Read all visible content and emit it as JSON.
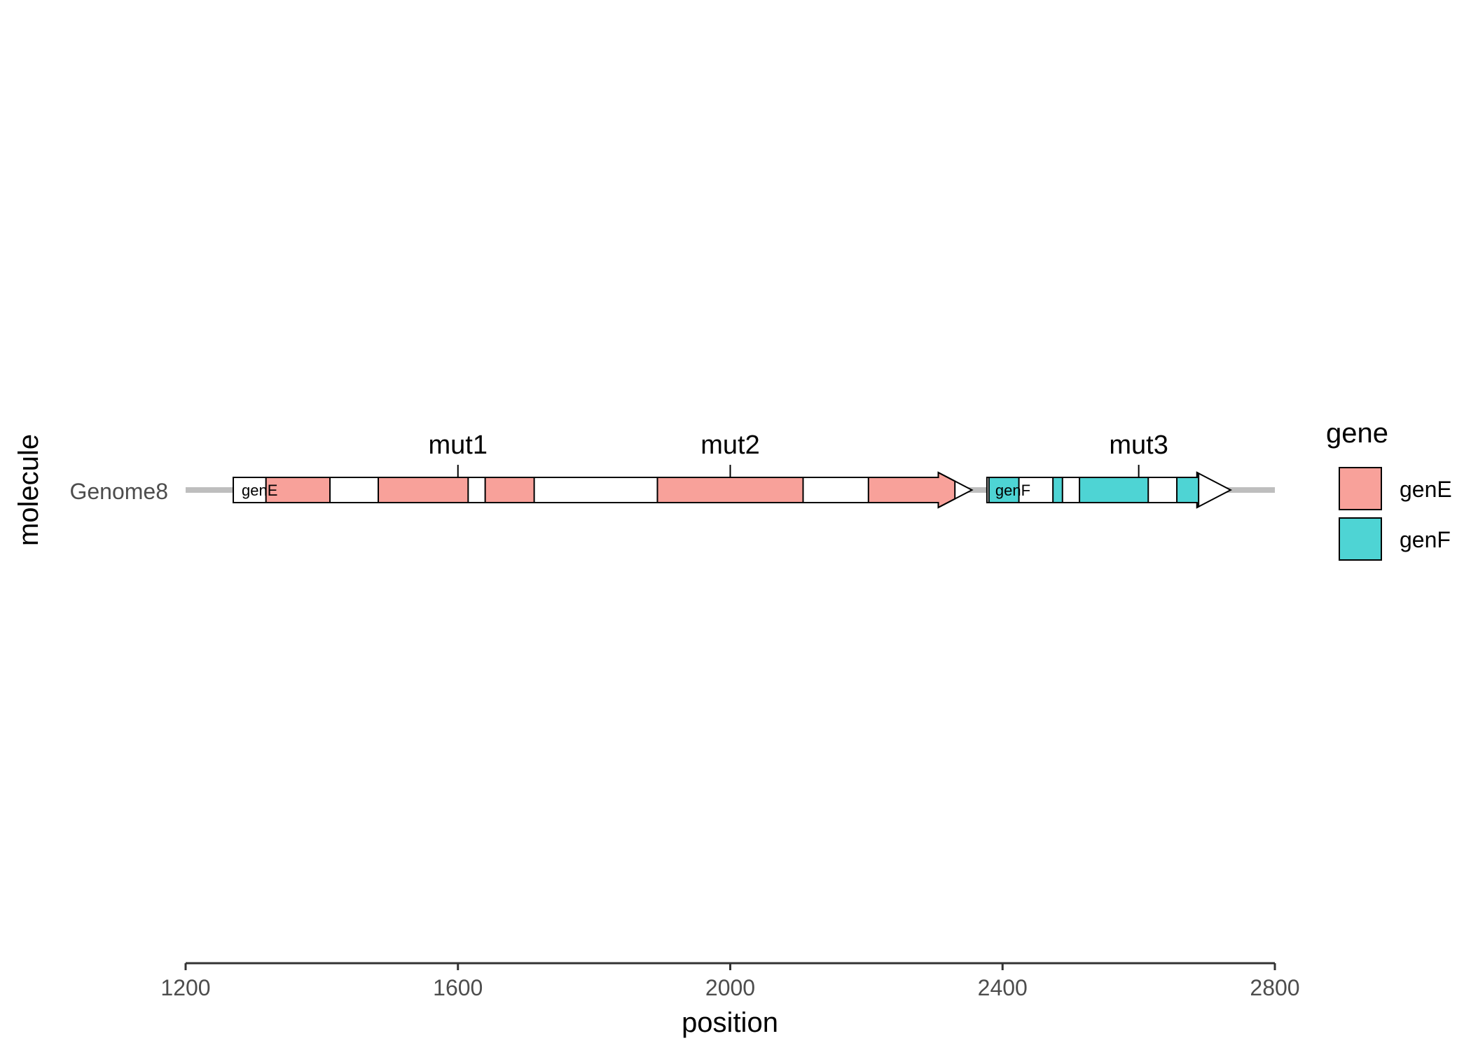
{
  "chart_data": {
    "type": "gene-arrow-map",
    "xlabel": "position",
    "ylabel": "molecule",
    "xlim": [
      1200,
      2800
    ],
    "xticks": [
      1200,
      1600,
      2000,
      2400,
      2800
    ],
    "xtick_labels": [
      "1200",
      "1600",
      "2000",
      "2400",
      "2800"
    ],
    "molecules": [
      "Genome8"
    ],
    "molecule_span": [
      1200,
      2800
    ],
    "legend": {
      "title": "gene",
      "placement": "right",
      "entries": [
        {
          "label": "genE",
          "color": "#F8A19A"
        },
        {
          "label": "genF",
          "color": "#4ED4D4"
        }
      ]
    },
    "genes": [
      {
        "name": "genE",
        "molecule": "Genome8",
        "start": 1270,
        "end": 2355,
        "color": "#F8A19A",
        "subgenes": [
          [
            1318,
            1412
          ],
          [
            1483,
            1615
          ],
          [
            1640,
            1712
          ],
          [
            1893,
            2107
          ],
          [
            2203,
            2330
          ]
        ]
      },
      {
        "name": "genF",
        "molecule": "Genome8",
        "start": 2377,
        "end": 2735,
        "color": "#4ED4D4",
        "subgenes": [
          [
            2380,
            2424
          ],
          [
            2474,
            2488
          ],
          [
            2513,
            2614
          ],
          [
            2656,
            2688
          ]
        ]
      }
    ],
    "mutations": [
      {
        "label": "mut1",
        "position": 1600
      },
      {
        "label": "mut2",
        "position": 2000
      },
      {
        "label": "mut3",
        "position": 2600
      }
    ]
  }
}
